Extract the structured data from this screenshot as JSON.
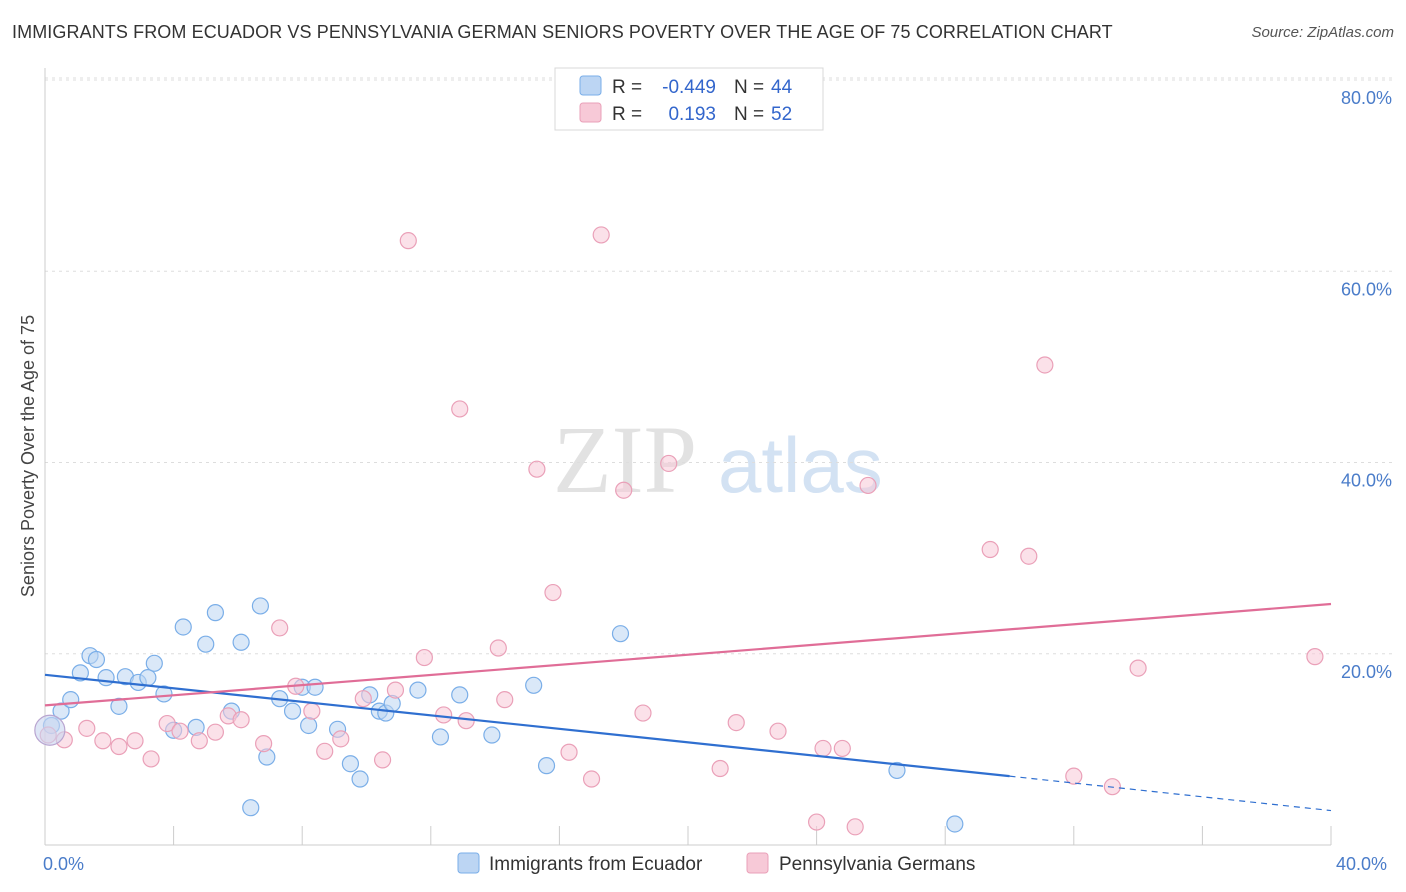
{
  "header": {
    "title": "IMMIGRANTS FROM ECUADOR VS PENNSYLVANIA GERMAN SENIORS POVERTY OVER THE AGE OF 75 CORRELATION CHART",
    "source": "Source: ZipAtlas.com"
  },
  "watermark": {
    "zip": "ZIP",
    "atlas": "atlas"
  },
  "legend": {
    "r_label": "R =",
    "n_label": "N =",
    "series": [
      {
        "r": "-0.449",
        "n": "44"
      },
      {
        "r": "0.193",
        "n": "52"
      }
    ]
  },
  "chart_data": {
    "type": "scatter",
    "title": "IMMIGRANTS FROM ECUADOR VS PENNSYLVANIA GERMAN SENIORS POVERTY OVER THE AGE OF 75 CORRELATION CHART",
    "ylabel": "Seniors Poverty Over the Age of 75",
    "xlim": [
      0,
      40
    ],
    "ylim": [
      0,
      80
    ],
    "x_tick_labels": [
      "0.0%",
      "40.0%"
    ],
    "y_ticks": [
      20,
      40,
      60,
      80
    ],
    "y_tick_labels": [
      "20.0%",
      "40.0%",
      "60.0%",
      "80.0%"
    ],
    "grid": true,
    "series": [
      {
        "name": "Immigrants from Ecuador",
        "color": "#7aaee8",
        "fill": "#bcd5f3",
        "points": [
          [
            0.2,
            12.5
          ],
          [
            0.5,
            14.0
          ],
          [
            0.8,
            15.2
          ],
          [
            1.1,
            18.0
          ],
          [
            1.4,
            19.8
          ],
          [
            1.6,
            19.4
          ],
          [
            1.9,
            17.5
          ],
          [
            2.3,
            14.5
          ],
          [
            2.5,
            17.6
          ],
          [
            2.9,
            17.0
          ],
          [
            3.2,
            17.5
          ],
          [
            3.4,
            19.0
          ],
          [
            3.7,
            15.8
          ],
          [
            4.0,
            12.0
          ],
          [
            4.3,
            22.8
          ],
          [
            4.7,
            12.3
          ],
          [
            5.0,
            21.0
          ],
          [
            5.3,
            24.3
          ],
          [
            5.8,
            14.0
          ],
          [
            6.1,
            21.2
          ],
          [
            6.7,
            25.0
          ],
          [
            6.9,
            9.2
          ],
          [
            7.3,
            15.3
          ],
          [
            7.7,
            14.0
          ],
          [
            8.0,
            16.5
          ],
          [
            8.2,
            12.5
          ],
          [
            8.4,
            16.5
          ],
          [
            9.1,
            12.1
          ],
          [
            9.5,
            8.5
          ],
          [
            9.8,
            6.9
          ],
          [
            10.1,
            15.7
          ],
          [
            10.4,
            14.0
          ],
          [
            10.6,
            13.8
          ],
          [
            10.8,
            14.8
          ],
          [
            11.6,
            16.2
          ],
          [
            12.3,
            11.3
          ],
          [
            12.9,
            15.7
          ],
          [
            13.9,
            11.5
          ],
          [
            15.2,
            16.7
          ],
          [
            15.6,
            8.3
          ],
          [
            17.9,
            22.1
          ],
          [
            6.4,
            3.9
          ],
          [
            26.5,
            7.8
          ],
          [
            28.3,
            2.2
          ]
        ]
      },
      {
        "name": "Pennsylvania Germans",
        "color": "#eaa0b8",
        "fill": "#f7c9d7",
        "points": [
          [
            0.1,
            11.5
          ],
          [
            0.6,
            11.0
          ],
          [
            1.3,
            12.2
          ],
          [
            1.8,
            10.9
          ],
          [
            2.3,
            10.3
          ],
          [
            2.8,
            10.9
          ],
          [
            3.3,
            9.0
          ],
          [
            3.8,
            12.7
          ],
          [
            4.2,
            11.9
          ],
          [
            4.8,
            10.9
          ],
          [
            5.3,
            11.8
          ],
          [
            5.7,
            13.5
          ],
          [
            6.1,
            13.1
          ],
          [
            6.8,
            10.6
          ],
          [
            7.3,
            22.7
          ],
          [
            7.8,
            16.6
          ],
          [
            8.3,
            14.0
          ],
          [
            8.7,
            9.8
          ],
          [
            9.2,
            11.1
          ],
          [
            9.9,
            15.3
          ],
          [
            10.5,
            8.9
          ],
          [
            10.9,
            16.2
          ],
          [
            11.3,
            63.2
          ],
          [
            11.8,
            19.6
          ],
          [
            12.4,
            13.6
          ],
          [
            12.9,
            45.6
          ],
          [
            13.1,
            13.0
          ],
          [
            14.1,
            20.6
          ],
          [
            14.3,
            15.2
          ],
          [
            15.3,
            39.3
          ],
          [
            15.8,
            26.4
          ],
          [
            16.3,
            9.7
          ],
          [
            17.0,
            6.9
          ],
          [
            17.3,
            63.8
          ],
          [
            18.0,
            37.1
          ],
          [
            18.6,
            13.8
          ],
          [
            19.4,
            39.9
          ],
          [
            21.0,
            8.0
          ],
          [
            21.5,
            12.8
          ],
          [
            22.8,
            11.9
          ],
          [
            24.0,
            2.4
          ],
          [
            24.2,
            10.1
          ],
          [
            24.8,
            10.1
          ],
          [
            25.2,
            1.9
          ],
          [
            25.6,
            37.6
          ],
          [
            29.4,
            30.9
          ],
          [
            30.6,
            30.2
          ],
          [
            31.1,
            50.2
          ],
          [
            32.0,
            7.2
          ],
          [
            33.2,
            6.1
          ],
          [
            34.0,
            18.5
          ],
          [
            39.5,
            19.7
          ]
        ]
      }
    ],
    "trendlines": [
      {
        "series": "Immigrants from Ecuador",
        "solid": [
          [
            0,
            17.8
          ],
          [
            30,
            7.2
          ]
        ],
        "dashed": [
          [
            30,
            7.2
          ],
          [
            40,
            3.6
          ]
        ]
      },
      {
        "series": "Pennsylvania Germans",
        "solid": [
          [
            0,
            14.6
          ],
          [
            40,
            25.2
          ]
        ]
      }
    ]
  }
}
